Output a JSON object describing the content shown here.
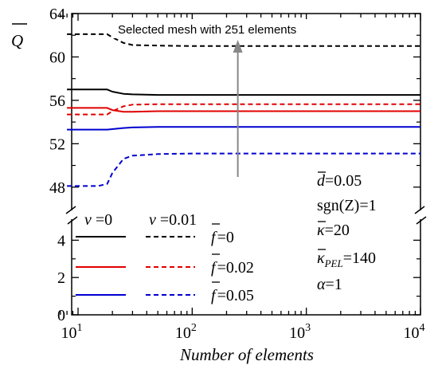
{
  "chart_data": {
    "type": "line",
    "xscale": "log",
    "xlabel": "Number of elements",
    "ylabel": "Q",
    "xlim": [
      7,
      10000
    ],
    "ylim_upper": [
      46,
      64
    ],
    "ylim_lower": [
      0,
      5
    ],
    "x_tick_labels": [
      {
        "base": "10",
        "exp": "1"
      },
      {
        "base": "10",
        "exp": "2"
      },
      {
        "base": "10",
        "exp": "3"
      },
      {
        "base": "10",
        "exp": "4"
      }
    ],
    "y_tick_labels_upper": [
      "48",
      "52",
      "56",
      "60",
      "64"
    ],
    "y_tick_labels_lower": [
      "0",
      "2",
      "4"
    ],
    "legend_header": [
      {
        "symbol": "ν",
        "value": "=0"
      },
      {
        "symbol": "ν",
        "value": "=0.01"
      }
    ],
    "legend_entries": [
      "=0",
      "=0.02",
      "=0.05"
    ],
    "annotation": "Selected mesh with 251 elements",
    "selected_x": 251,
    "params": [
      {
        "sym": "d",
        "bar": true,
        "sub": "",
        "value": "=0.05"
      },
      {
        "sym": "sgn(Z)",
        "bar": false,
        "sub": "",
        "value": "=1"
      },
      {
        "sym": "κ",
        "bar": true,
        "sub": "",
        "value": "=20"
      },
      {
        "sym": "κ",
        "bar": true,
        "sub": "PEL",
        "value": "=140"
      },
      {
        "sym": "α",
        "bar": false,
        "sub": "",
        "value": "=1"
      }
    ],
    "series": [
      {
        "color": "#000000",
        "dashed": false,
        "x": [
          8,
          10,
          15,
          18,
          20,
          25,
          30,
          50,
          100,
          1000,
          10000
        ],
        "y": [
          57.0,
          57.0,
          57.0,
          57.0,
          56.8,
          56.6,
          56.55,
          56.5,
          56.5,
          56.5,
          56.5
        ]
      },
      {
        "color": "#000000",
        "dashed": true,
        "x": [
          8,
          10,
          15,
          18,
          20,
          25,
          30,
          50,
          100,
          1000,
          10000
        ],
        "y": [
          62.1,
          62.1,
          62.1,
          62.1,
          61.8,
          61.3,
          61.1,
          61.05,
          61.0,
          61.0,
          61.0
        ]
      },
      {
        "color": "#e00000",
        "dashed": false,
        "x": [
          8,
          10,
          15,
          18,
          20,
          25,
          30,
          50,
          100,
          1000,
          10000
        ],
        "y": [
          55.3,
          55.3,
          55.3,
          55.3,
          55.1,
          54.95,
          54.95,
          55.0,
          55.0,
          55.0,
          55.0
        ]
      },
      {
        "color": "#e00000",
        "dashed": true,
        "x": [
          8,
          10,
          15,
          18,
          20,
          25,
          30,
          50,
          100,
          1000,
          10000
        ],
        "y": [
          54.7,
          54.7,
          54.7,
          54.7,
          55.0,
          55.45,
          55.6,
          55.65,
          55.65,
          55.65,
          55.65
        ]
      },
      {
        "color": "#0000d0",
        "dashed": false,
        "x": [
          8,
          10,
          15,
          18,
          20,
          25,
          30,
          50,
          100,
          1000,
          10000
        ],
        "y": [
          53.3,
          53.3,
          53.3,
          53.3,
          53.35,
          53.45,
          53.5,
          53.55,
          53.55,
          53.55,
          53.55
        ]
      },
      {
        "color": "#0000d0",
        "dashed": true,
        "x": [
          8,
          10,
          15,
          18,
          20,
          25,
          30,
          50,
          100,
          1000,
          10000
        ],
        "y": [
          48.1,
          48.1,
          48.1,
          48.3,
          49.3,
          50.6,
          50.9,
          51.05,
          51.1,
          51.1,
          51.1
        ]
      }
    ]
  }
}
